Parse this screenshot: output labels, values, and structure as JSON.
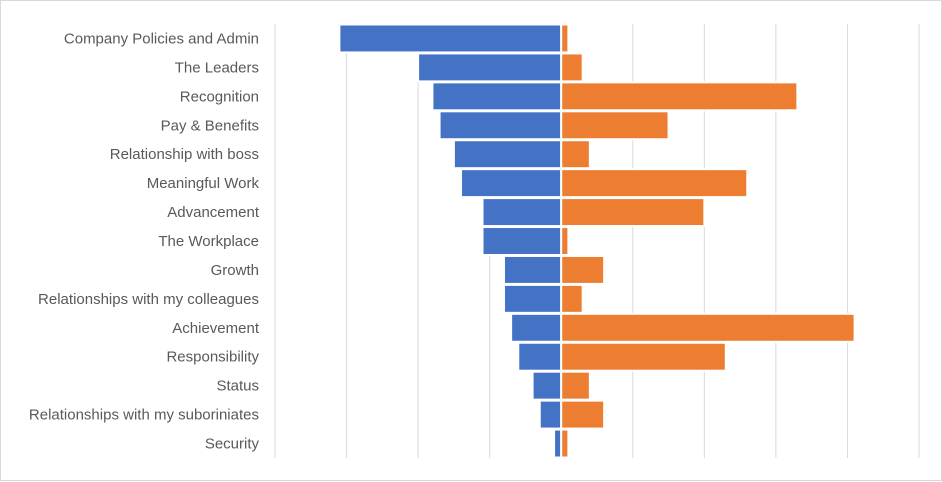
{
  "chart_data": {
    "type": "bar",
    "orientation": "horizontal",
    "layout": "diverging",
    "categories": [
      "Company Policies and Admin",
      "The Leaders",
      "Recognition",
      "Pay & Benefits",
      "Relationship with boss",
      "Meaningful Work",
      "Advancement",
      "The Workplace",
      "Growth",
      "Relationships with my colleagues",
      "Achievement",
      "Responsibility",
      "Status",
      "Relationships with my suboriniates",
      "Security"
    ],
    "series": [
      {
        "color": "#4472c4",
        "values": [
          -31,
          -20,
          -18,
          -17,
          -15,
          -14,
          -11,
          -11,
          -8,
          -8,
          -7,
          -6,
          -4,
          -3,
          -1
        ]
      },
      {
        "color": "#ed7d31",
        "values": [
          1,
          3,
          33,
          15,
          4,
          26,
          20,
          1,
          6,
          3,
          41,
          23,
          4,
          6,
          1
        ]
      }
    ],
    "xlim": [
      -40,
      50
    ],
    "x_gridline_step": 10,
    "grid": true,
    "legend": "none",
    "title": "",
    "xlabel": "",
    "ylabel": ""
  }
}
